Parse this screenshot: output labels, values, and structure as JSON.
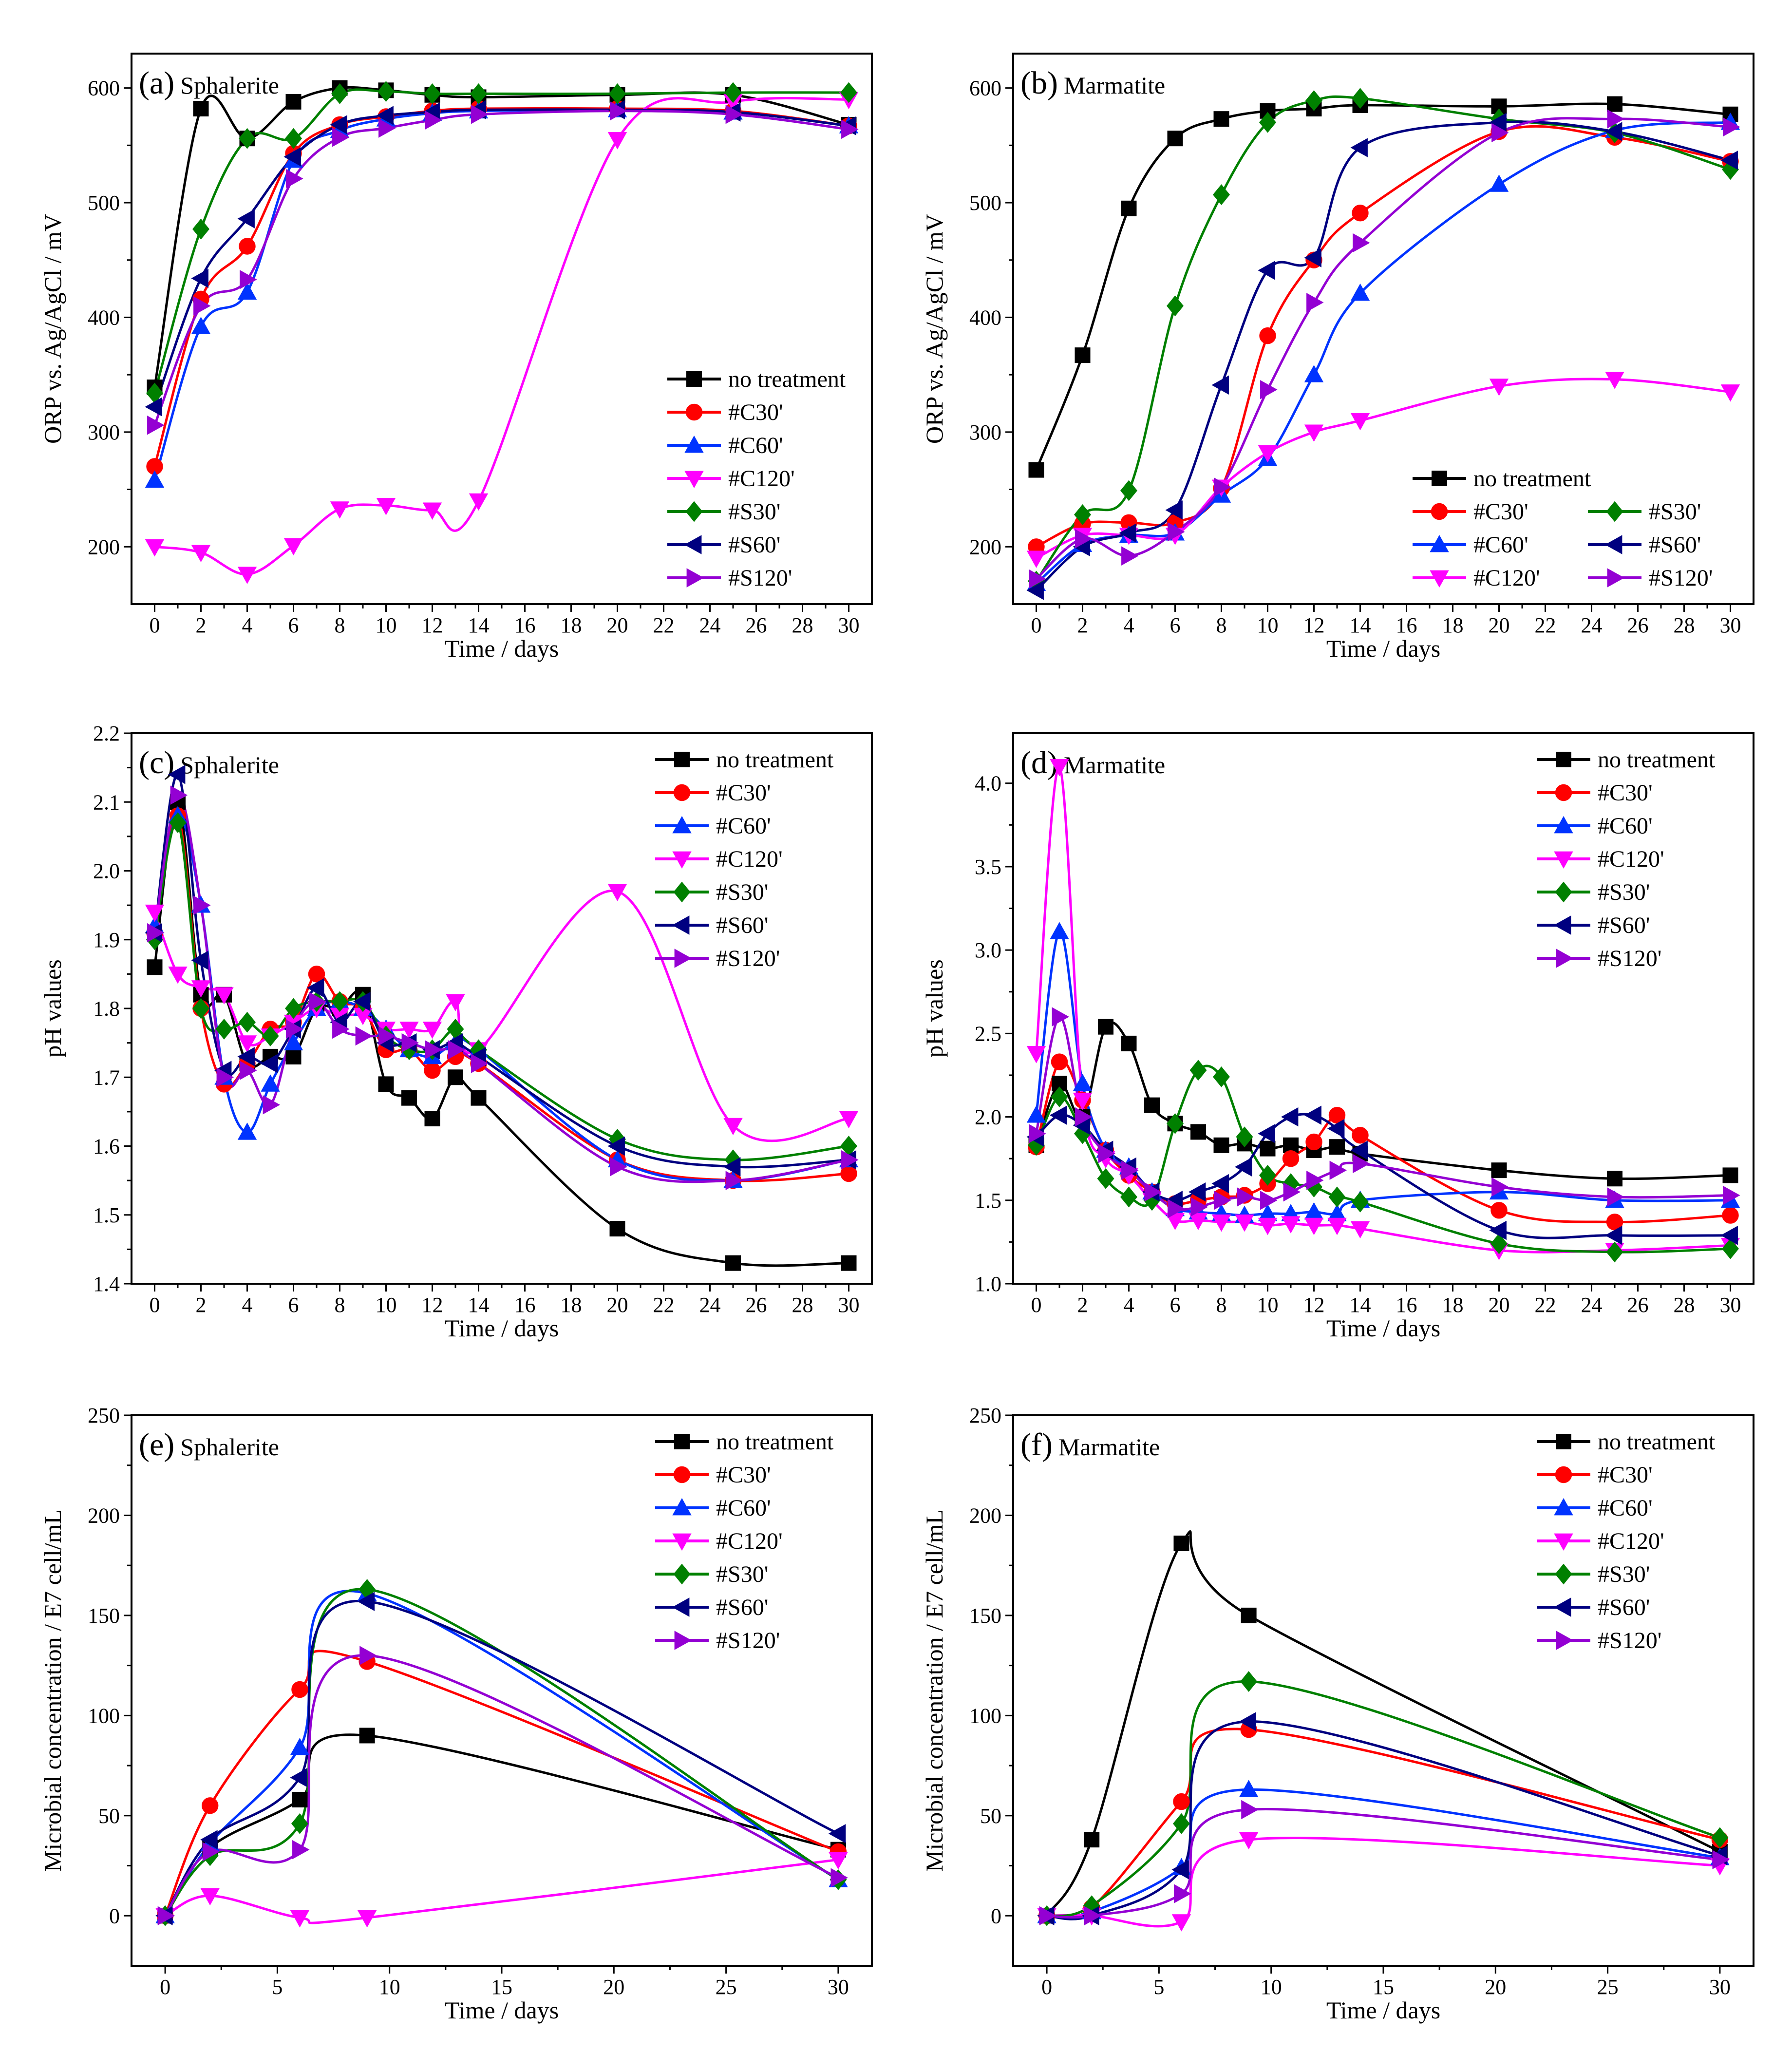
{
  "chart_data": [
    {
      "id": "a",
      "type": "line",
      "panel_label": "(a)",
      "title": "Sphalerite",
      "xlabel": "Time / days",
      "ylabel": "ORP vs. Ag/AgCl / mV",
      "xlim": [
        -1,
        31
      ],
      "ylim": [
        150,
        630
      ],
      "xticks": [
        0,
        2,
        4,
        6,
        8,
        10,
        12,
        14,
        16,
        18,
        20,
        22,
        24,
        26,
        28,
        30
      ],
      "yticks": [
        200,
        300,
        400,
        500,
        600
      ],
      "legend_position": "bottom-right",
      "legend_columns": 1,
      "x": [
        0,
        2,
        4,
        6,
        8,
        10,
        12,
        14,
        20,
        25,
        30
      ],
      "series": [
        {
          "name": "no treatment",
          "color": "#000000",
          "marker": "square",
          "values": [
            339,
            582,
            556,
            588,
            600,
            598,
            594,
            592,
            594,
            594,
            568
          ]
        },
        {
          "name": "#C30'",
          "color": "#ff0000",
          "marker": "circle",
          "values": [
            270,
            416,
            462,
            543,
            568,
            575,
            580,
            582,
            582,
            580,
            567
          ]
        },
        {
          "name": "#C60'",
          "color": "#0033ff",
          "marker": "triangle-up",
          "values": [
            258,
            392,
            422,
            537,
            563,
            573,
            578,
            580,
            581,
            579,
            567
          ]
        },
        {
          "name": "#C120'",
          "color": "#ff00ff",
          "marker": "triangle-down",
          "values": [
            200,
            195,
            176,
            201,
            233,
            236,
            232,
            240,
            555,
            588,
            590
          ]
        },
        {
          "name": "#S30'",
          "color": "#008000",
          "marker": "diamond",
          "values": [
            334,
            477,
            556,
            556,
            595,
            597,
            595,
            595,
            595,
            596,
            596
          ]
        },
        {
          "name": "#S60'",
          "color": "#000080",
          "marker": "triangle-left",
          "values": [
            322,
            434,
            486,
            540,
            568,
            576,
            579,
            581,
            581,
            579,
            567
          ]
        },
        {
          "name": "#S120'",
          "color": "#9400d3",
          "marker": "triangle-right",
          "values": [
            306,
            410,
            433,
            521,
            557,
            565,
            572,
            577,
            580,
            577,
            564
          ]
        }
      ]
    },
    {
      "id": "b",
      "type": "line",
      "panel_label": "(b)",
      "title": "Marmatite",
      "xlabel": "Time / days",
      "ylabel": "ORP vs. Ag/AgCl / mV",
      "xlim": [
        -1,
        31
      ],
      "ylim": [
        150,
        630
      ],
      "xticks": [
        0,
        2,
        4,
        6,
        8,
        10,
        12,
        14,
        16,
        18,
        20,
        22,
        24,
        26,
        28,
        30
      ],
      "yticks": [
        200,
        300,
        400,
        500,
        600
      ],
      "legend_position": "bottom-right",
      "legend_columns": 2,
      "x": [
        0,
        2,
        4,
        6,
        8,
        10,
        12,
        14,
        20,
        25,
        30
      ],
      "series": [
        {
          "name": "no treatment",
          "color": "#000000",
          "marker": "square",
          "values": [
            267,
            367,
            495,
            556,
            573,
            580,
            582,
            585,
            584,
            586,
            577
          ]
        },
        {
          "name": "#C30'",
          "color": "#ff0000",
          "marker": "circle",
          "values": [
            200,
            220,
            221,
            221,
            251,
            384,
            450,
            491,
            562,
            557,
            536
          ]
        },
        {
          "name": "#C60'",
          "color": "#0033ff",
          "marker": "triangle-up",
          "values": [
            168,
            202,
            210,
            212,
            245,
            277,
            350,
            421,
            516,
            563,
            570
          ]
        },
        {
          "name": "#C120'",
          "color": "#ff00ff",
          "marker": "triangle-down",
          "values": [
            190,
            210,
            210,
            210,
            252,
            282,
            300,
            310,
            340,
            346,
            335
          ]
        },
        {
          "name": "#S30'",
          "color": "#008000",
          "marker": "diamond",
          "values": [
            170,
            228,
            249,
            410,
            507,
            570,
            589,
            591,
            573,
            561,
            529
          ]
        },
        {
          "name": "#S60'",
          "color": "#000080",
          "marker": "triangle-left",
          "values": [
            162,
            200,
            212,
            232,
            341,
            441,
            452,
            548,
            570,
            562,
            537
          ]
        },
        {
          "name": "#S120'",
          "color": "#9400d3",
          "marker": "triangle-right",
          "values": [
            172,
            207,
            192,
            213,
            252,
            337,
            413,
            465,
            561,
            573,
            566
          ]
        }
      ]
    },
    {
      "id": "c",
      "type": "line",
      "panel_label": "(c)",
      "title": "Sphalerite",
      "xlabel": "Time / days",
      "ylabel": "pH values",
      "xlim": [
        -1,
        31
      ],
      "ylim": [
        1.4,
        2.2
      ],
      "xticks": [
        0,
        2,
        4,
        6,
        8,
        10,
        12,
        14,
        16,
        18,
        20,
        22,
        24,
        26,
        28,
        30
      ],
      "yticks": [
        1.4,
        1.5,
        1.6,
        1.7,
        1.8,
        1.9,
        2.0,
        2.1,
        2.2
      ],
      "legend_position": "top-right",
      "legend_columns": 1,
      "x": [
        0,
        1,
        2,
        3,
        4,
        5,
        6,
        7,
        8,
        9,
        10,
        11,
        12,
        13,
        14,
        20,
        25,
        30
      ],
      "series": [
        {
          "name": "no treatment",
          "color": "#000000",
          "marker": "square",
          "values": [
            1.86,
            2.1,
            1.82,
            1.82,
            1.72,
            1.73,
            1.73,
            1.8,
            1.8,
            1.82,
            1.69,
            1.67,
            1.64,
            1.7,
            1.67,
            1.48,
            1.43,
            1.43
          ]
        },
        {
          "name": "#C30'",
          "color": "#ff0000",
          "marker": "circle",
          "values": [
            1.91,
            2.08,
            1.8,
            1.69,
            1.72,
            1.77,
            1.78,
            1.85,
            1.81,
            1.8,
            1.74,
            1.74,
            1.71,
            1.73,
            1.72,
            1.58,
            1.55,
            1.56
          ]
        },
        {
          "name": "#C60'",
          "color": "#0033ff",
          "marker": "triangle-up",
          "values": [
            1.92,
            2.08,
            1.95,
            1.7,
            1.62,
            1.69,
            1.75,
            1.8,
            1.81,
            1.8,
            1.77,
            1.74,
            1.73,
            1.75,
            1.74,
            1.58,
            1.55,
            1.58
          ]
        },
        {
          "name": "#C120'",
          "color": "#ff00ff",
          "marker": "triangle-down",
          "values": [
            1.94,
            1.85,
            1.83,
            1.82,
            1.75,
            1.76,
            1.78,
            1.8,
            1.79,
            1.79,
            1.77,
            1.77,
            1.77,
            1.81,
            1.74,
            1.97,
            1.63,
            1.64
          ]
        },
        {
          "name": "#S30'",
          "color": "#008000",
          "marker": "diamond",
          "values": [
            1.9,
            2.07,
            1.8,
            1.77,
            1.78,
            1.76,
            1.8,
            1.81,
            1.81,
            1.81,
            1.76,
            1.74,
            1.74,
            1.77,
            1.74,
            1.61,
            1.58,
            1.6
          ]
        },
        {
          "name": "#S60'",
          "color": "#000080",
          "marker": "triangle-left",
          "values": [
            1.91,
            2.14,
            1.87,
            1.71,
            1.73,
            1.72,
            1.77,
            1.83,
            1.78,
            1.81,
            1.75,
            1.75,
            1.74,
            1.75,
            1.73,
            1.6,
            1.57,
            1.58
          ]
        },
        {
          "name": "#S120'",
          "color": "#9400d3",
          "marker": "triangle-right",
          "values": [
            1.91,
            2.11,
            1.95,
            1.7,
            1.71,
            1.66,
            1.77,
            1.81,
            1.77,
            1.76,
            1.76,
            1.75,
            1.74,
            1.74,
            1.72,
            1.57,
            1.55,
            1.58
          ]
        }
      ]
    },
    {
      "id": "d",
      "type": "line",
      "panel_label": "(d)",
      "title": "Marmatite",
      "xlabel": "Time / days",
      "ylabel": "pH values",
      "xlim": [
        -1,
        31
      ],
      "ylim": [
        1.0,
        4.3
      ],
      "xticks": [
        0,
        2,
        4,
        6,
        8,
        10,
        12,
        14,
        16,
        18,
        20,
        22,
        24,
        26,
        28,
        30
      ],
      "yticks": [
        1.0,
        1.5,
        2.0,
        2.5,
        3.0,
        3.5,
        4.0
      ],
      "legend_position": "top-right",
      "legend_columns": 1,
      "x": [
        0,
        1,
        2,
        3,
        4,
        5,
        6,
        7,
        8,
        9,
        10,
        11,
        12,
        13,
        14,
        20,
        25,
        30
      ],
      "series": [
        {
          "name": "no treatment",
          "color": "#000000",
          "marker": "square",
          "values": [
            1.83,
            2.2,
            2.0,
            2.54,
            2.44,
            2.07,
            1.96,
            1.91,
            1.83,
            1.84,
            1.81,
            1.83,
            1.8,
            1.82,
            1.78,
            1.68,
            1.63,
            1.65
          ]
        },
        {
          "name": "#C30'",
          "color": "#ff0000",
          "marker": "circle",
          "values": [
            1.82,
            2.33,
            2.1,
            1.8,
            1.65,
            1.55,
            1.48,
            1.5,
            1.52,
            1.53,
            1.6,
            1.75,
            1.85,
            2.01,
            1.89,
            1.44,
            1.37,
            1.41
          ]
        },
        {
          "name": "#C60'",
          "color": "#0033ff",
          "marker": "triangle-up",
          "values": [
            2.01,
            3.11,
            2.2,
            1.8,
            1.7,
            1.55,
            1.45,
            1.43,
            1.42,
            1.41,
            1.42,
            1.42,
            1.43,
            1.42,
            1.5,
            1.55,
            1.5,
            1.5
          ]
        },
        {
          "name": "#C120'",
          "color": "#ff00ff",
          "marker": "triangle-down",
          "values": [
            2.38,
            4.1,
            2.1,
            1.75,
            1.65,
            1.5,
            1.38,
            1.38,
            1.37,
            1.37,
            1.35,
            1.36,
            1.35,
            1.35,
            1.33,
            1.2,
            1.2,
            1.23
          ]
        },
        {
          "name": "#S30'",
          "color": "#008000",
          "marker": "diamond",
          "values": [
            1.83,
            2.12,
            1.9,
            1.63,
            1.52,
            1.5,
            1.96,
            2.28,
            2.24,
            1.88,
            1.65,
            1.6,
            1.58,
            1.52,
            1.49,
            1.24,
            1.19,
            1.21
          ]
        },
        {
          "name": "#S60'",
          "color": "#000080",
          "marker": "triangle-left",
          "values": [
            1.88,
            2.01,
            1.95,
            1.8,
            1.7,
            1.55,
            1.5,
            1.55,
            1.6,
            1.7,
            1.9,
            2.0,
            2.01,
            1.93,
            1.8,
            1.32,
            1.29,
            1.29
          ]
        },
        {
          "name": "#S120'",
          "color": "#9400d3",
          "marker": "triangle-right",
          "values": [
            1.9,
            2.6,
            2.0,
            1.78,
            1.68,
            1.55,
            1.45,
            1.46,
            1.5,
            1.52,
            1.5,
            1.55,
            1.62,
            1.68,
            1.72,
            1.58,
            1.52,
            1.53
          ]
        }
      ]
    },
    {
      "id": "e",
      "type": "line",
      "panel_label": "(e)",
      "title": "Sphalerite",
      "xlabel": "Time / days",
      "ylabel": "Microbial concentration / E7 cell/mL",
      "xlim": [
        -1.5,
        31.5
      ],
      "ylim": [
        -25,
        250
      ],
      "xticks": [
        0,
        5,
        10,
        15,
        20,
        25,
        30
      ],
      "yticks": [
        0,
        50,
        100,
        150,
        200,
        250
      ],
      "legend_position": "top-right",
      "legend_columns": 1,
      "x": [
        0,
        2,
        6,
        9,
        30
      ],
      "series": [
        {
          "name": "no treatment",
          "color": "#000000",
          "marker": "square",
          "values": [
            0,
            34,
            58,
            90,
            33
          ]
        },
        {
          "name": "#C30'",
          "color": "#ff0000",
          "marker": "circle",
          "values": [
            0,
            55,
            113,
            127,
            32
          ]
        },
        {
          "name": "#C60'",
          "color": "#0033ff",
          "marker": "triangle-up",
          "values": [
            0,
            36,
            84,
            161,
            18
          ]
        },
        {
          "name": "#C120'",
          "color": "#ff00ff",
          "marker": "triangle-down",
          "values": [
            0,
            10,
            -1,
            -1,
            28
          ]
        },
        {
          "name": "#S30'",
          "color": "#008000",
          "marker": "diamond",
          "values": [
            0,
            30,
            46,
            163,
            18
          ]
        },
        {
          "name": "#S60'",
          "color": "#000080",
          "marker": "triangle-left",
          "values": [
            0,
            38,
            69,
            157,
            41
          ]
        },
        {
          "name": "#S120'",
          "color": "#9400d3",
          "marker": "triangle-right",
          "values": [
            0,
            32,
            33,
            130,
            19
          ]
        }
      ]
    },
    {
      "id": "f",
      "type": "line",
      "panel_label": "(f)",
      "title": "Marmatite",
      "xlabel": "Time / days",
      "ylabel": "Microbial concentration / E7 cell/mL",
      "xlim": [
        -1.5,
        31.5
      ],
      "ylim": [
        -25,
        250
      ],
      "xticks": [
        0,
        5,
        10,
        15,
        20,
        25,
        30
      ],
      "yticks": [
        0,
        50,
        100,
        150,
        200,
        250
      ],
      "legend_position": "top-right",
      "legend_columns": 1,
      "x": [
        0,
        2,
        6,
        9,
        30
      ],
      "series": [
        {
          "name": "no treatment",
          "color": "#000000",
          "marker": "square",
          "values": [
            0,
            38,
            186,
            150,
            32
          ]
        },
        {
          "name": "#C30'",
          "color": "#ff0000",
          "marker": "circle",
          "values": [
            0,
            4,
            57,
            93,
            38
          ]
        },
        {
          "name": "#C60'",
          "color": "#0033ff",
          "marker": "triangle-up",
          "values": [
            0,
            2,
            24,
            63,
            29
          ]
        },
        {
          "name": "#C120'",
          "color": "#ff00ff",
          "marker": "triangle-down",
          "values": [
            0,
            0,
            -3,
            38,
            25
          ]
        },
        {
          "name": "#S30'",
          "color": "#008000",
          "marker": "diamond",
          "values": [
            0,
            5,
            46,
            117,
            39
          ]
        },
        {
          "name": "#S60'",
          "color": "#000080",
          "marker": "triangle-left",
          "values": [
            0,
            0,
            23,
            97,
            30
          ]
        },
        {
          "name": "#S120'",
          "color": "#9400d3",
          "marker": "triangle-right",
          "values": [
            0,
            0,
            11,
            53,
            28
          ]
        }
      ]
    }
  ]
}
